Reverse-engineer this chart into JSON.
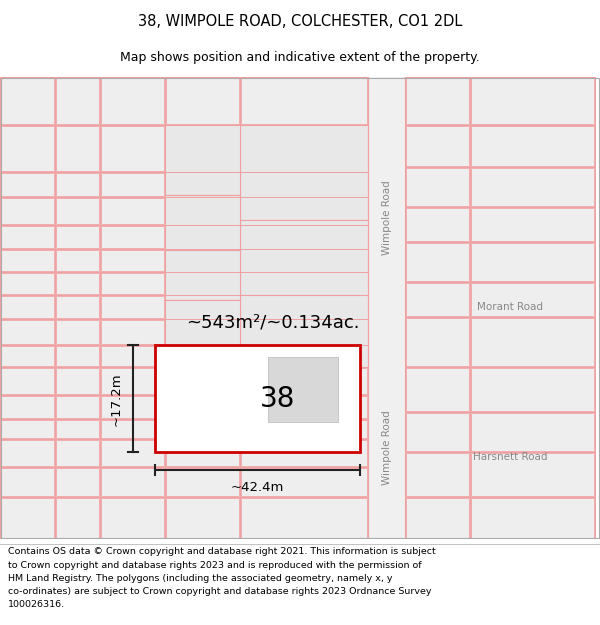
{
  "title": "38, WIMPOLE ROAD, COLCHESTER, CO1 2DL",
  "subtitle": "Map shows position and indicative extent of the property.",
  "footer": "Contains OS data © Crown copyright and database right 2021. This information is subject to Crown copyright and database rights 2023 and is reproduced with the permission of HM Land Registry. The polygons (including the associated geometry, namely x, y co-ordinates) are subject to Crown copyright and database rights 2023 Ordnance Survey 100026316.",
  "plot_number": "38",
  "area_text": "~543m²/~0.134ac.",
  "width_label": "~42.4m",
  "height_label": "~17.2m",
  "road_label_upper": "Wimpole Road",
  "road_label_lower": "Wimpole Road",
  "road_label_morant": "Morant Road",
  "road_label_harsnett": "Harsnett Road",
  "title_fontsize": 10.5,
  "subtitle_fontsize": 9,
  "footer_fontsize": 6.8,
  "block_fill": "#ebebeb",
  "block_edge": "#f0a0a0",
  "road_fill": "#e8e8e8",
  "road_edge": "#f0a0a0",
  "plot_edge": "#cc0000",
  "plot_fill": "#ffffff",
  "bldg_fill": "#d8d8d8",
  "bldg_edge": "#c0c0c0",
  "dim_color": "#222222",
  "road_label_color": "#888888",
  "bg_color": "#ffffff"
}
